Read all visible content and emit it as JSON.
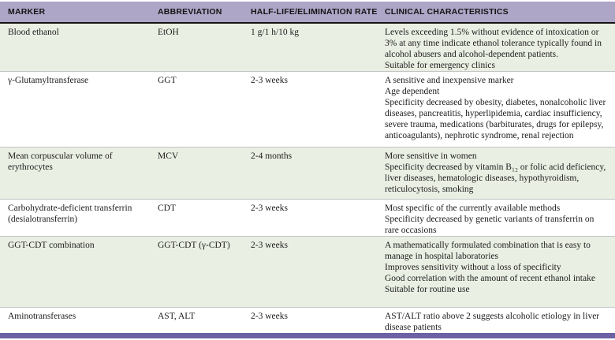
{
  "table": {
    "columns": [
      "MARKER",
      "ABBREVIATION",
      "HALF-LIFE/ELIMINATION RATE",
      "CLINICAL CHARACTERISTICS"
    ],
    "rows": [
      {
        "marker": "Blood ethanol",
        "abbreviation": "EtOH",
        "half_life": "1 g/1 h/10 kg",
        "characteristics": [
          "Levels exceeding 1.5% without evidence of intoxication or 3% at any time indicate ethanol tolerance typically found in alcohol abusers and alcohol-dependent patients.",
          "Suitable for emergency clinics"
        ]
      },
      {
        "marker": "γ-Glutamyltransferase",
        "abbreviation": "GGT",
        "half_life": "2-3 weeks",
        "characteristics": [
          "A sensitive and inexpensive marker",
          "Age dependent",
          "Specificity decreased by obesity, diabetes, nonalcoholic liver diseases, pancreatitis, hyperlipidemia, cardiac insufficiency, severe trauma, medications (barbiturates, drugs for epilepsy, anticoagulants), nephrotic syndrome, renal rejection"
        ]
      },
      {
        "marker": "Mean corpuscular volume of erythrocytes",
        "abbreviation": "MCV",
        "half_life": "2-4 months",
        "characteristics": [
          "More sensitive in women",
          "Specificity decreased by vitamin B₁₂ or folic acid deficiency, liver diseases, hematologic diseases, hypothyroidism, reticulocytosis, smoking"
        ]
      },
      {
        "marker": "Carbohydrate-deficient transferrin (desialotransferrin)",
        "abbreviation": "CDT",
        "half_life": "2-3 weeks",
        "characteristics": [
          "Most specific of the currently available methods",
          "Specificity decreased by genetic variants of transferrin on rare occasions"
        ]
      },
      {
        "marker": "GGT-CDT combination",
        "abbreviation": "GGT-CDT (γ-CDT)",
        "half_life": "2-3 weeks",
        "characteristics": [
          "A mathematically formulated combination that is easy to manage in hospital laboratories",
          "Improves sensitivity without a loss of specificity",
          "Good correlation with the amount of recent ethanol intake",
          "Suitable for routine use"
        ]
      },
      {
        "marker": "Aminotransferases",
        "abbreviation": "AST, ALT",
        "half_life": "2-3 weeks",
        "characteristics": [
          "AST/ALT ratio above 2 suggests alcoholic etiology in liver disease patients"
        ]
      }
    ]
  },
  "colors": {
    "header_bg": "#aea6c7",
    "stripe_bg": "#eaefe3",
    "footer_bar": "#6b61a4",
    "header_rule": "#141414",
    "row_separator": "#c3c3c3"
  }
}
